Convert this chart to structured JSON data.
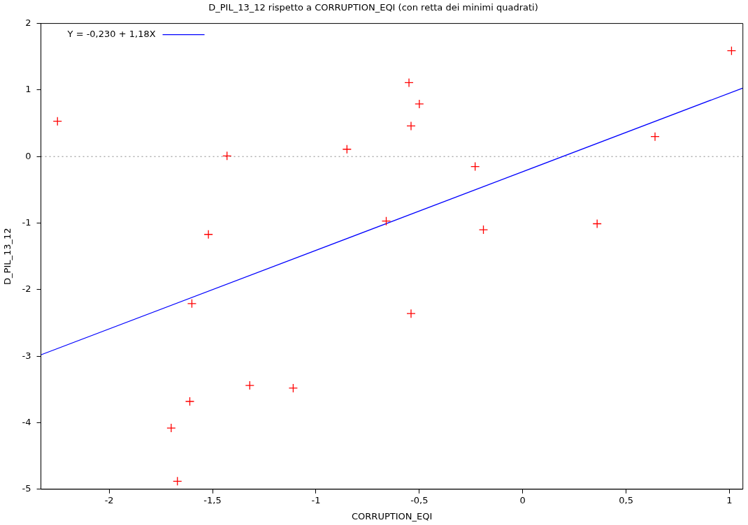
{
  "chart_data": {
    "type": "scatter",
    "title": "D_PIL_13_12 rispetto a CORRUPTION_EQI (con retta dei minimi quadrati)",
    "xlabel": "CORRUPTION_EQI",
    "ylabel": "D_PIL_13_12",
    "xlim": [
      -2.33,
      1.065
    ],
    "ylim": [
      -5,
      2
    ],
    "xticks": [
      {
        "value": -2,
        "label": "-2"
      },
      {
        "value": -1.5,
        "label": "-1,5"
      },
      {
        "value": -1,
        "label": "-1"
      },
      {
        "value": -0.5,
        "label": "-0,5"
      },
      {
        "value": 0,
        "label": "0"
      },
      {
        "value": 0.5,
        "label": "0,5"
      },
      {
        "value": 1,
        "label": "1"
      }
    ],
    "yticks": [
      -5,
      -4,
      -3,
      -2,
      -1,
      0,
      1,
      2
    ],
    "grid": false,
    "legend": "top left",
    "ref_lines": [
      {
        "axis": "y",
        "value": 0,
        "color": "#888888",
        "line_style": "dotted"
      }
    ],
    "series": [
      {
        "color": "#ff0000",
        "marker": "cross",
        "x": [
          -2.25,
          1.01,
          -0.55,
          -0.5,
          -0.54,
          -0.85,
          -1.43,
          0.64,
          -0.23,
          -0.66,
          -0.19,
          0.36,
          -1.52,
          -1.6,
          -0.54,
          -1.32,
          -1.11,
          -1.61,
          -1.7,
          -1.67
        ],
        "values": [
          0.53,
          1.59,
          1.11,
          0.79,
          0.46,
          0.11,
          0.01,
          0.3,
          -0.15,
          -0.97,
          -1.1,
          -1.01,
          -1.17,
          -2.21,
          -2.36,
          -3.44,
          -3.48,
          -3.68,
          -4.08,
          -4.88
        ]
      },
      {
        "type": "line",
        "name": "Y = -0,230 + 1,18X",
        "color": "#0000ff",
        "marker": "none",
        "line_style": "solid",
        "x": [
          -2.33,
          1.065
        ],
        "values": [
          -2.98,
          1.03
        ]
      }
    ]
  }
}
